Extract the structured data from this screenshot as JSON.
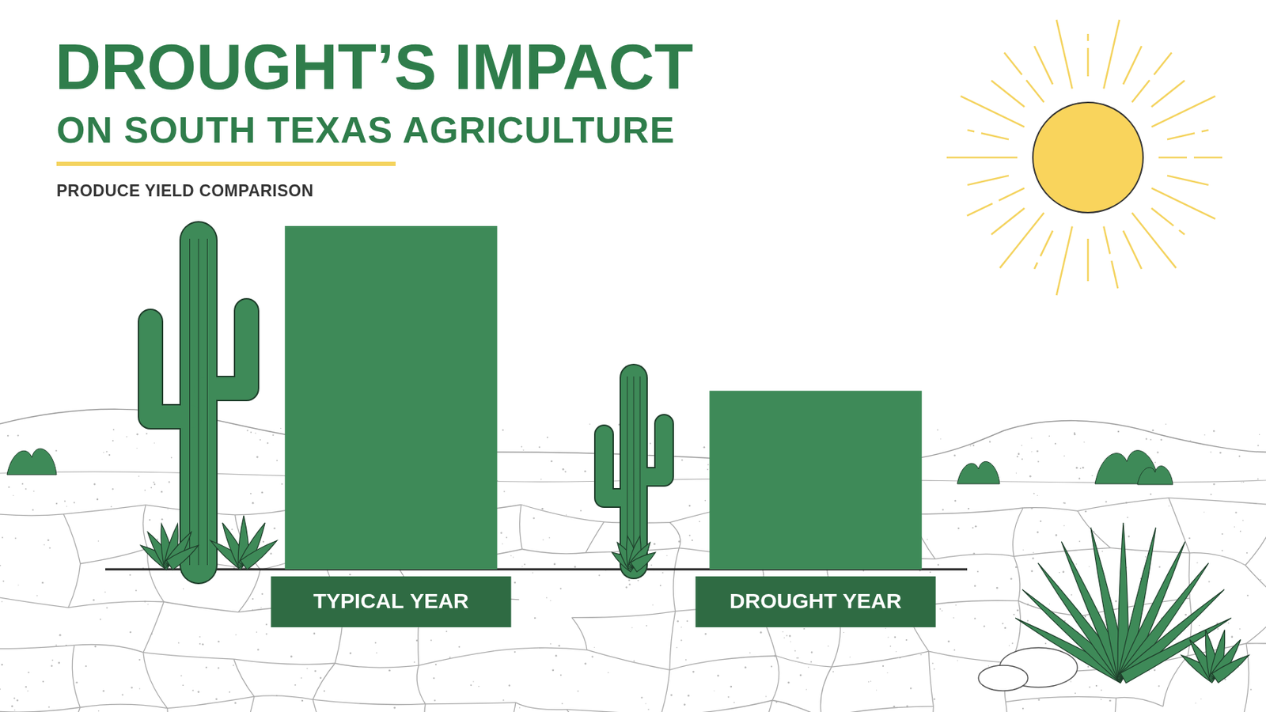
{
  "chart_data": {
    "type": "bar",
    "title": "DROUGHT’S IMPACT",
    "subtitle": [
      "ON SOUTH TEXAS AGRICULTURE",
      "PRODUCE YIELD COMPARISON"
    ],
    "categories": [
      "TYPICAL YEAR",
      "DROUGHT YEAR"
    ],
    "values": [
      100,
      52
    ],
    "color": "#3e8a58",
    "ylim": [
      0,
      100
    ],
    "grid": false,
    "tick_labels": "x"
  }
}
